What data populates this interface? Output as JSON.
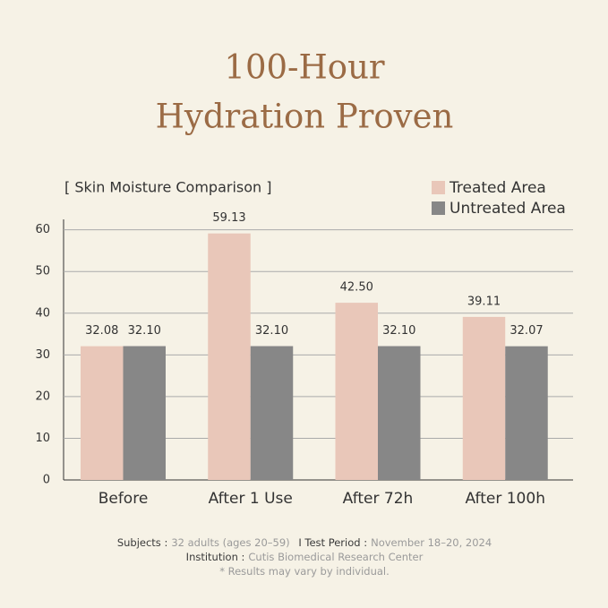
{
  "chart_data": {
    "type": "bar",
    "title": [
      "100-Hour",
      "Hydration Proven"
    ],
    "subtitle": "[ Skin Moisture Comparison ]",
    "categories": [
      "Before",
      "After 1 Use",
      "After 72h",
      "After 100h"
    ],
    "series": [
      {
        "name": "Treated Area",
        "color": "#e9c7b9",
        "values": [
          32.08,
          59.13,
          42.5,
          39.11
        ],
        "value_labels": [
          "32.08",
          "59.13",
          "42.50",
          "39.11"
        ]
      },
      {
        "name": "Untreated Area",
        "color": "#878787",
        "values": [
          32.1,
          32.1,
          32.1,
          32.07
        ],
        "value_labels": [
          "32.10",
          "32.10",
          "32.10",
          "32.07"
        ]
      }
    ],
    "ylim": [
      0,
      62.5
    ],
    "yticks": [
      0,
      10,
      20,
      30,
      40,
      50,
      60
    ],
    "grid": true,
    "notes": [
      [
        {
          "label": "Subjects :",
          "text": "32 adults (ages 20–59)"
        },
        {
          "separator": "I"
        },
        {
          "label": "Test Period :",
          "text": "November 18–20, 2024"
        }
      ],
      [
        {
          "label": "Institution :",
          "text": "Cutis Biomedical Research Center"
        }
      ],
      [
        {
          "text": "* Results may vary by individual."
        }
      ]
    ]
  }
}
